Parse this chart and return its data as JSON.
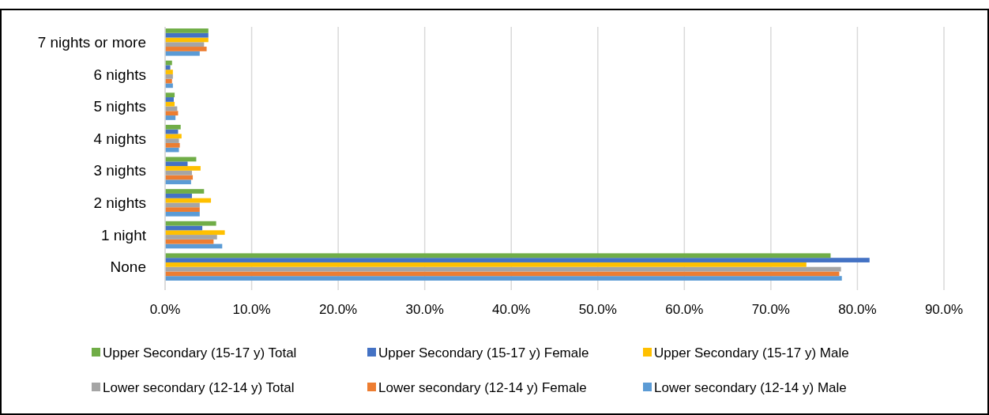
{
  "chart_data": {
    "type": "bar",
    "orientation": "horizontal",
    "categories": [
      "7 nights or more",
      "6 nights",
      "5 nights",
      "4 nights",
      "3 nights",
      "2 nights",
      "1 night",
      "None"
    ],
    "series": [
      {
        "name": "Lower secondary (12-14 y) Male",
        "color": "#5b9bd5",
        "values": [
          4.0,
          0.9,
          1.2,
          1.6,
          3.0,
          4.0,
          6.6,
          78.2
        ]
      },
      {
        "name": "Lower secondary (12-14 y) Female",
        "color": "#ed7d31",
        "values": [
          4.8,
          0.8,
          1.5,
          1.7,
          3.2,
          4.0,
          5.6,
          77.9
        ]
      },
      {
        "name": "Lower secondary (12-14 y) Total",
        "color": "#a5a5a5",
        "values": [
          4.5,
          0.9,
          1.4,
          1.6,
          3.1,
          4.0,
          6.0,
          78.1
        ]
      },
      {
        "name": "Upper Secondary (15-17 y) Male",
        "color": "#ffc000",
        "values": [
          5.0,
          0.9,
          1.1,
          1.9,
          4.1,
          5.3,
          6.9,
          74.1
        ]
      },
      {
        "name": "Upper Secondary (15-17 y) Female",
        "color": "#4472c4",
        "values": [
          5.0,
          0.6,
          1.0,
          1.5,
          2.6,
          3.1,
          4.3,
          81.4
        ]
      },
      {
        "name": "Upper Secondary (15-17 y) Total",
        "color": "#70ad47",
        "values": [
          5.0,
          0.8,
          1.1,
          1.8,
          3.6,
          4.5,
          5.9,
          76.9
        ]
      }
    ],
    "xlim": [
      0,
      90
    ],
    "xticks": [
      {
        "value": 0,
        "label": "0.0%"
      },
      {
        "value": 10,
        "label": "10.0%"
      },
      {
        "value": 20,
        "label": "20.0%"
      },
      {
        "value": 30,
        "label": "30.0%"
      },
      {
        "value": 40,
        "label": "40.0%"
      },
      {
        "value": 50,
        "label": "50.0%"
      },
      {
        "value": 60,
        "label": "60.0%"
      },
      {
        "value": 70,
        "label": "70.0%"
      },
      {
        "value": 80,
        "label": "80.0%"
      },
      {
        "value": 90,
        "label": "90.0%"
      }
    ],
    "grid": "x",
    "legend": "bottom"
  }
}
